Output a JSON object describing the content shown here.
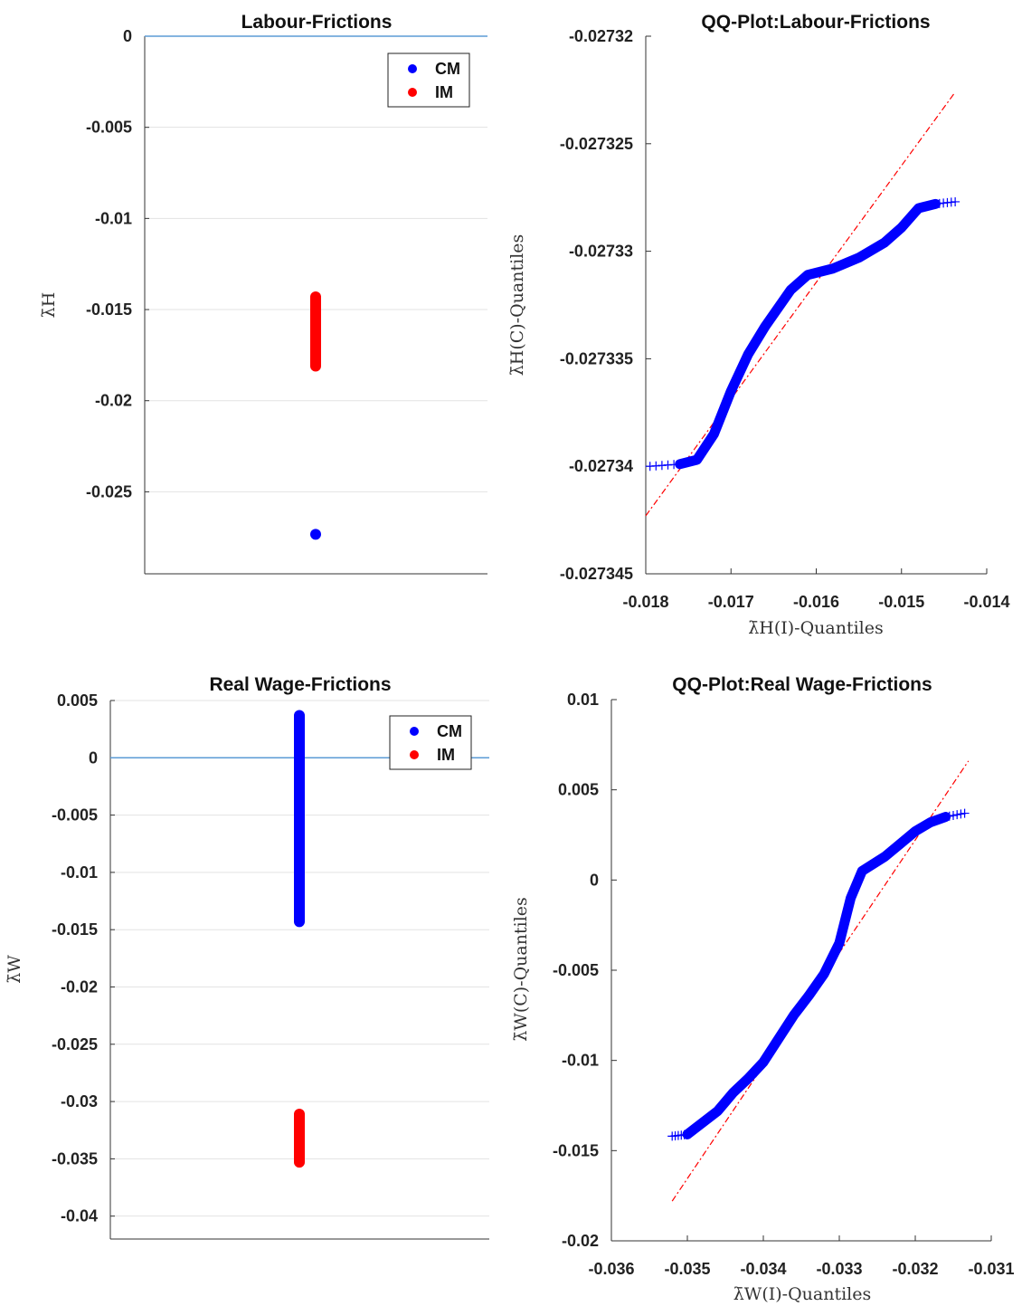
{
  "chart_data": [
    {
      "id": "labour-frictions",
      "type": "scatter",
      "title": "Labour-Frictions",
      "ylabel": "λ̄H",
      "xlabel": "",
      "ylim": [
        -0.0295,
        0
      ],
      "yticks": [
        0,
        -0.005,
        -0.01,
        -0.015,
        -0.02,
        -0.025
      ],
      "ytick_labels": [
        "0",
        "-0.005",
        "-0.01",
        "-0.015",
        "-0.02",
        "-0.025"
      ],
      "grid": "horizontal",
      "reference_line_y": 0,
      "legend": {
        "position": "top-right",
        "entries": [
          "CM",
          "IM"
        ]
      },
      "series": [
        {
          "name": "CM",
          "color": "#0000ff",
          "y_range": [
            -0.02734,
            -0.027325
          ]
        },
        {
          "name": "IM",
          "color": "#ff0000",
          "y_range": [
            -0.0181,
            -0.0143
          ]
        }
      ]
    },
    {
      "id": "qq-labour-frictions",
      "type": "scatter",
      "title": "QQ-Plot:Labour-Frictions",
      "xlabel": "λ̄H(I)-Quantiles",
      "ylabel": "λ̄H(C)-Quantiles",
      "xlim": [
        -0.018,
        -0.014
      ],
      "ylim": [
        -0.027345,
        -0.02732
      ],
      "xticks": [
        -0.018,
        -0.017,
        -0.016,
        -0.015,
        -0.014
      ],
      "xtick_labels": [
        "-0.018",
        "-0.017",
        "-0.016",
        "-0.015",
        "-0.014"
      ],
      "yticks": [
        -0.02732,
        -0.027325,
        -0.02733,
        -0.027335,
        -0.02734,
        -0.027345
      ],
      "ytick_labels": [
        "-0.02732",
        "-0.027325",
        "-0.02733",
        "-0.027335",
        "-0.02734",
        "-0.027345"
      ],
      "series": [
        {
          "name": "",
          "color": "#0000ff",
          "marker": "+",
          "x": [
            -0.01795,
            -0.0176,
            -0.0174,
            -0.0172,
            -0.017,
            -0.0168,
            -0.0166,
            -0.0163,
            -0.0161,
            -0.0158,
            -0.0155,
            -0.0152,
            -0.015,
            -0.0148,
            -0.0146,
            -0.01437
          ],
          "y": [
            -0.02734,
            -0.0273399,
            -0.0273397,
            -0.0273385,
            -0.0273365,
            -0.0273348,
            -0.0273335,
            -0.0273318,
            -0.0273311,
            -0.0273308,
            -0.0273303,
            -0.0273296,
            -0.0273289,
            -0.027328,
            -0.0273278,
            -0.0273277
          ]
        }
      ],
      "reference_line": {
        "color": "#ff0000",
        "style": "dash-dot",
        "points": [
          [
            -0.018,
            -0.0273423
          ],
          [
            -0.01437,
            -0.0273226
          ]
        ]
      }
    },
    {
      "id": "real-wage-frictions",
      "type": "scatter",
      "title": "Real Wage-Frictions",
      "ylabel": "λ̄W",
      "xlabel": "",
      "ylim": [
        -0.042,
        0.005
      ],
      "yticks": [
        0.005,
        0,
        -0.005,
        -0.01,
        -0.015,
        -0.02,
        -0.025,
        -0.03,
        -0.035,
        -0.04
      ],
      "ytick_labels": [
        "0.005",
        "0",
        "-0.005",
        "-0.01",
        "-0.015",
        "-0.02",
        "-0.025",
        "-0.03",
        "-0.035",
        "-0.04"
      ],
      "grid": "horizontal",
      "reference_line_y": 0,
      "legend": {
        "position": "top-right",
        "entries": [
          "CM",
          "IM"
        ]
      },
      "series": [
        {
          "name": "CM",
          "color": "#0000ff",
          "y_range": [
            -0.0143,
            0.0037
          ]
        },
        {
          "name": "IM",
          "color": "#ff0000",
          "y_range": [
            -0.0353,
            -0.0311
          ]
        }
      ]
    },
    {
      "id": "qq-real-wage-frictions",
      "type": "scatter",
      "title": "QQ-Plot:Real Wage-Frictions",
      "xlabel": "λ̄W(I)-Quantiles",
      "ylabel": "λ̄W(C)-Quantiles",
      "xlim": [
        -0.036,
        -0.031
      ],
      "ylim": [
        -0.02,
        0.01
      ],
      "xticks": [
        -0.036,
        -0.035,
        -0.034,
        -0.033,
        -0.032,
        -0.031
      ],
      "xtick_labels": [
        "-0.036",
        "-0.035",
        "-0.034",
        "-0.033",
        "-0.032",
        "-0.031"
      ],
      "yticks": [
        0.01,
        0.005,
        0,
        -0.005,
        -0.01,
        -0.015,
        -0.02
      ],
      "ytick_labels": [
        "0.01",
        "0.005",
        "0",
        "-0.005",
        "-0.01",
        "-0.015",
        "-0.02"
      ],
      "series": [
        {
          "name": "",
          "color": "#0000ff",
          "marker": "+",
          "x": [
            -0.0352,
            -0.035,
            -0.0346,
            -0.0344,
            -0.0342,
            -0.034,
            -0.0338,
            -0.0336,
            -0.0334,
            -0.0332,
            -0.033,
            -0.03285,
            -0.0327,
            -0.0324,
            -0.0322,
            -0.032,
            -0.0318,
            -0.0316,
            -0.03135
          ],
          "y": [
            -0.0142,
            -0.0141,
            -0.0128,
            -0.0118,
            -0.011,
            -0.0101,
            -0.0088,
            -0.0075,
            -0.0064,
            -0.0052,
            -0.0035,
            -0.001,
            0.0005,
            0.0013,
            0.002,
            0.0027,
            0.0032,
            0.0035,
            0.0037
          ]
        }
      ],
      "reference_line": {
        "color": "#ff0000",
        "style": "dash-dot",
        "points": [
          [
            -0.0352,
            -0.0178
          ],
          [
            -0.0313,
            0.0066
          ]
        ]
      }
    }
  ]
}
